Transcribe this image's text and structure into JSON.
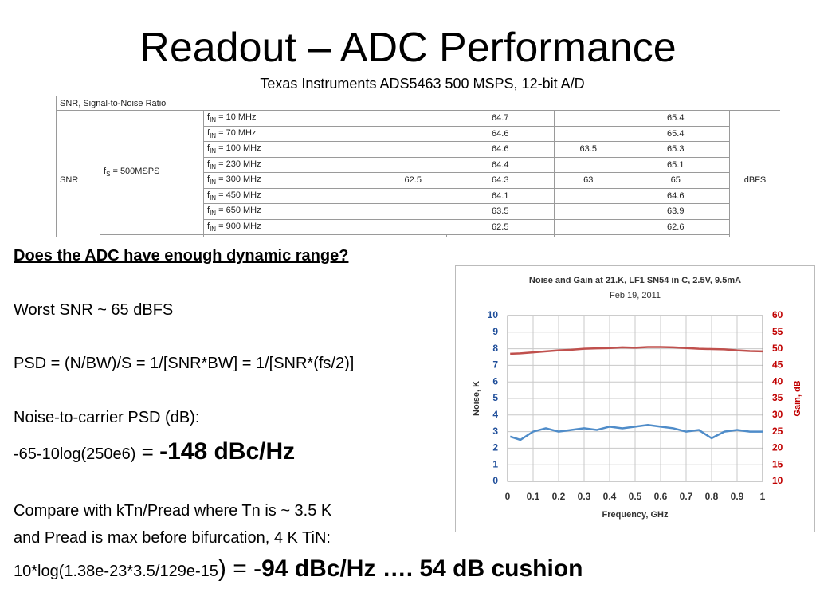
{
  "title": "Readout – ADC Performance",
  "subtitle": "Texas Instruments ADS5463 500 MSPS, 12-bit A/D",
  "table": {
    "header": "SNR, Signal-to-Noise Ratio",
    "row_label": "SNR",
    "condition": {
      "symbol": "f",
      "subscript": "S",
      "text": " = 500MSPS"
    },
    "unit": "dBFS",
    "rows": [
      {
        "param": {
          "symbol": "f",
          "subscript": "IN",
          "text": " = 10 MHz"
        },
        "values": [
          null,
          64.7,
          null,
          65.4
        ]
      },
      {
        "param": {
          "symbol": "f",
          "subscript": "IN",
          "text": " = 70 MHz"
        },
        "values": [
          null,
          64.6,
          null,
          65.4
        ]
      },
      {
        "param": {
          "symbol": "f",
          "subscript": "IN",
          "text": " = 100 MHz"
        },
        "values": [
          null,
          64.6,
          63.5,
          65.3
        ]
      },
      {
        "param": {
          "symbol": "f",
          "subscript": "IN",
          "text": " = 230 MHz"
        },
        "values": [
          null,
          64.4,
          null,
          65.1
        ]
      },
      {
        "param": {
          "symbol": "f",
          "subscript": "IN",
          "text": " = 300 MHz"
        },
        "values": [
          62.5,
          64.3,
          63,
          65
        ]
      },
      {
        "param": {
          "symbol": "f",
          "subscript": "IN",
          "text": " = 450 MHz"
        },
        "values": [
          null,
          64.1,
          null,
          64.6
        ]
      },
      {
        "param": {
          "symbol": "f",
          "subscript": "IN",
          "text": " = 650 MHz"
        },
        "values": [
          null,
          63.5,
          null,
          63.9
        ]
      },
      {
        "param": {
          "symbol": "f",
          "subscript": "IN",
          "text": " = 900 MHz"
        },
        "values": [
          null,
          62.5,
          null,
          62.6
        ]
      }
    ]
  },
  "body": {
    "heading": "Does the ADC have enough dynamic range?",
    "line1": "Worst SNR ~ 65 dBFS",
    "line2": "PSD = (N/BW)/S = 1/[SNR*BW] = 1/[SNR*(fs/2)]",
    "line3": "Noise-to-carrier PSD (dB):",
    "line4": {
      "expr": "-65-10log(250e6)",
      "eq": " = ",
      "result": "-148 dBc/Hz"
    },
    "line5": "Compare with kTn/Pread where Tn is ~ 3.5 K",
    "line6": "and Pread is max before bifurcation, 4 K TiN:",
    "line7": {
      "expr": "10*log(1.38e-23*3.5/129e-15",
      "paren": ")",
      "eq": " = -",
      "result": "94 dBc/Hz …. 54 dB cushion"
    }
  },
  "chart_data": {
    "type": "line",
    "title": "Noise and Gain at 21.K, LF1 SN54 in C, 2.5V, 9.5mA",
    "subtitle": "Feb 19, 2011",
    "x_label": "Frequency, GHz",
    "y_label": "Noise, K",
    "y2_label": "Gain, dB",
    "y_color": "#1f4e9a",
    "y2_color": "#c00000",
    "grid": true,
    "xlim": [
      0,
      1
    ],
    "xticks": [
      0,
      0.1,
      0.2,
      0.3,
      0.4,
      0.5,
      0.6,
      0.7,
      0.8,
      0.9,
      1
    ],
    "ylim": [
      0,
      10
    ],
    "yticks": [
      0,
      1,
      2,
      3,
      4,
      5,
      6,
      7,
      8,
      9,
      10
    ],
    "y2lim": [
      10,
      60
    ],
    "y2ticks": [
      10,
      15,
      20,
      25,
      30,
      35,
      40,
      45,
      50,
      55,
      60
    ],
    "x": [
      0.01,
      0.05,
      0.1,
      0.15,
      0.2,
      0.25,
      0.3,
      0.35,
      0.4,
      0.45,
      0.5,
      0.55,
      0.6,
      0.65,
      0.7,
      0.75,
      0.8,
      0.85,
      0.9,
      0.95,
      1.0
    ],
    "series": [
      {
        "name": "Noise",
        "color": "#4f8cc9",
        "values": [
          2.7,
          2.5,
          3.0,
          3.2,
          3.0,
          3.1,
          3.2,
          3.1,
          3.3,
          3.2,
          3.3,
          3.4,
          3.3,
          3.2,
          3.0,
          3.1,
          2.6,
          3.0,
          3.1,
          3.0,
          3.0
        ]
      },
      {
        "name": "Gain",
        "color": "#c0504d",
        "axis": "y2",
        "values": [
          48.5,
          48.6,
          48.9,
          49.2,
          49.5,
          49.7,
          50.0,
          50.1,
          50.2,
          50.4,
          50.3,
          50.5,
          50.5,
          50.4,
          50.2,
          50.0,
          49.9,
          49.8,
          49.5,
          49.3,
          49.2
        ]
      }
    ]
  }
}
